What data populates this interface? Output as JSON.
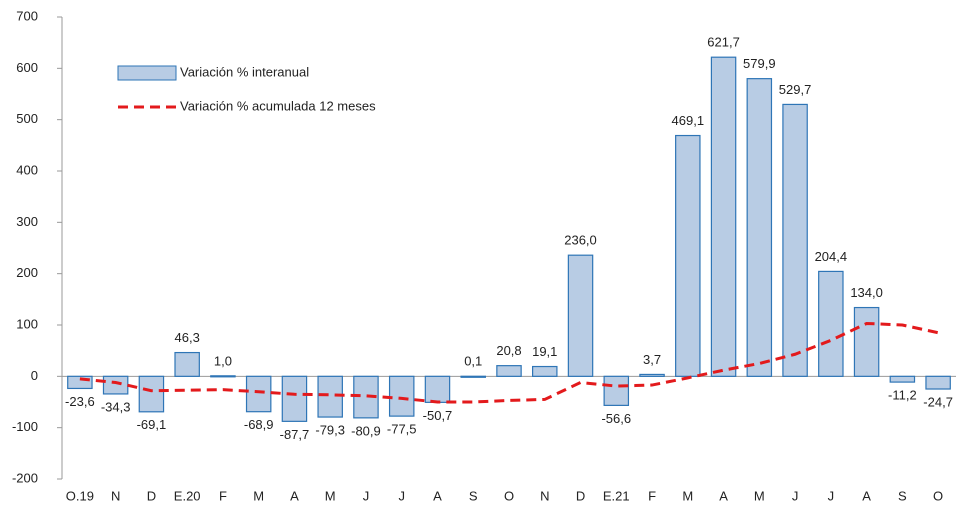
{
  "chart_data": {
    "type": "bar-line",
    "categories": [
      "O.19",
      "N",
      "D",
      "E.20",
      "F",
      "M",
      "A",
      "M",
      "J",
      "J",
      "A",
      "S",
      "O",
      "N",
      "D",
      "E.21",
      "F",
      "M",
      "A",
      "M",
      "J",
      "J",
      "A",
      "S",
      "O"
    ],
    "series": [
      {
        "name": "Variación % interanual",
        "type": "bar",
        "color": "#b8cce4",
        "stroke": "#2e75b6",
        "values": [
          -23.6,
          -34.3,
          -69.1,
          46.3,
          1.0,
          -68.9,
          -87.7,
          -79.3,
          -80.9,
          -77.5,
          -50.7,
          0.1,
          20.8,
          19.1,
          236.0,
          -56.6,
          3.7,
          469.1,
          621.7,
          579.9,
          529.7,
          204.4,
          134.0,
          -11.2,
          -24.7
        ],
        "value_labels": [
          "-23,6",
          "-34,3",
          "-69,1",
          "46,3",
          "1,0",
          "-68,9",
          "-87,7",
          "-79,3",
          "-80,9",
          "-77,5",
          "-50,7",
          "0,1",
          "20,8",
          "19,1",
          "236,0",
          "-56,6",
          "3,7",
          "469,1",
          "621,7",
          "579,9",
          "529,7",
          "204,4",
          "134,0",
          "-11,2",
          "-24,7"
        ]
      },
      {
        "name": "Variación % acumulada 12 meses",
        "type": "line",
        "color": "#e31a1c",
        "values": [
          -5,
          -12,
          -28,
          -27,
          -26,
          -30,
          -35,
          -36,
          -38,
          -43,
          -50,
          -50,
          -47,
          -45,
          -12,
          -19,
          -17,
          -3,
          12,
          25,
          43,
          70,
          103,
          100,
          85
        ]
      }
    ],
    "ylim": [
      -200,
      700
    ],
    "yticks": [
      -200,
      -100,
      0,
      100,
      200,
      300,
      400,
      500,
      600,
      700
    ],
    "legend": "upper-left"
  }
}
